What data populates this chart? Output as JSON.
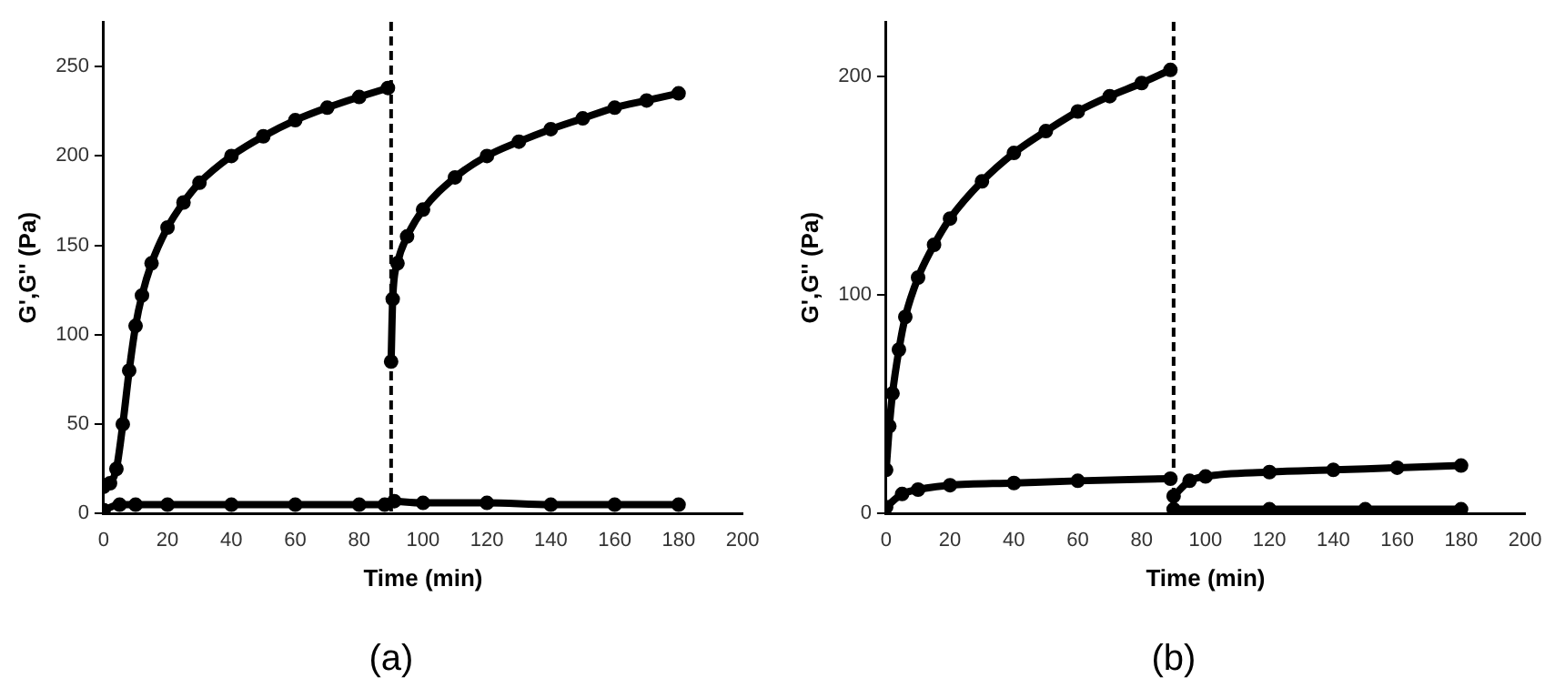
{
  "chart_data": [
    {
      "type": "line",
      "xlabel": "Time (min)",
      "ylabel": "G',G'' (Pa)",
      "xlim": [
        0,
        200
      ],
      "xticks": [
        0,
        20,
        40,
        60,
        80,
        100,
        120,
        140,
        160,
        180,
        200
      ],
      "ylim": [
        0,
        275
      ],
      "yticks": [
        0,
        50,
        100,
        150,
        200,
        250
      ],
      "grid": false,
      "legend": false,
      "marker": "circle",
      "line_style": "solid",
      "series": [
        {
          "color": "#000000",
          "x": [
            0,
            2,
            4,
            6,
            8,
            10,
            12,
            15,
            20,
            25,
            30,
            40,
            50,
            60,
            70,
            80,
            89
          ],
          "values": [
            15,
            17,
            25,
            50,
            80,
            105,
            122,
            140,
            160,
            174,
            185,
            200,
            211,
            220,
            227,
            233,
            238
          ]
        },
        {
          "color": "#000000",
          "x": [
            90,
            90.5,
            92,
            95,
            100,
            110,
            120,
            130,
            140,
            150,
            160,
            170,
            180
          ],
          "values": [
            85,
            120,
            140,
            155,
            170,
            188,
            200,
            208,
            215,
            221,
            227,
            231,
            235
          ]
        },
        {
          "color": "#000000",
          "x": [
            0,
            5,
            10,
            20,
            40,
            60,
            80,
            88
          ],
          "values": [
            2,
            5,
            5,
            5,
            5,
            5,
            5,
            5
          ]
        },
        {
          "color": "#000000",
          "x": [
            91,
            100,
            120,
            140,
            160,
            180
          ],
          "values": [
            7,
            6,
            6,
            5,
            5,
            5
          ]
        }
      ],
      "ref_lines": [
        {
          "axis": "x",
          "value": 90,
          "line_style": "dashed",
          "color": "#000000"
        }
      ],
      "annotations": [
        "(a)"
      ]
    },
    {
      "type": "line",
      "xlabel": "Time (min)",
      "ylabel": "G',G'' (Pa)",
      "xlim": [
        0,
        200
      ],
      "xticks": [
        0,
        20,
        40,
        60,
        80,
        100,
        120,
        140,
        160,
        180,
        200
      ],
      "ylim": [
        0,
        225
      ],
      "yticks": [
        0,
        100,
        200
      ],
      "grid": false,
      "legend": false,
      "marker": "circle",
      "line_style": "solid",
      "series": [
        {
          "color": "#000000",
          "x": [
            0,
            1,
            2,
            4,
            6,
            10,
            15,
            20,
            30,
            40,
            50,
            60,
            70,
            80,
            89
          ],
          "values": [
            20,
            40,
            55,
            75,
            90,
            108,
            123,
            135,
            152,
            165,
            175,
            184,
            191,
            197,
            203
          ]
        },
        {
          "color": "#000000",
          "x": [
            90,
            95,
            100,
            120,
            140,
            160,
            180
          ],
          "values": [
            8,
            15,
            17,
            19,
            20,
            21,
            22
          ]
        },
        {
          "color": "#000000",
          "x": [
            0,
            5,
            10,
            20,
            40,
            60,
            89
          ],
          "values": [
            3,
            9,
            11,
            13,
            14,
            15,
            16
          ]
        },
        {
          "color": "#000000",
          "x": [
            90,
            120,
            150,
            180
          ],
          "values": [
            2,
            2,
            2,
            2
          ]
        }
      ],
      "ref_lines": [
        {
          "axis": "x",
          "value": 90,
          "line_style": "dashed",
          "color": "#000000"
        }
      ],
      "annotations": [
        "(b)"
      ]
    }
  ]
}
